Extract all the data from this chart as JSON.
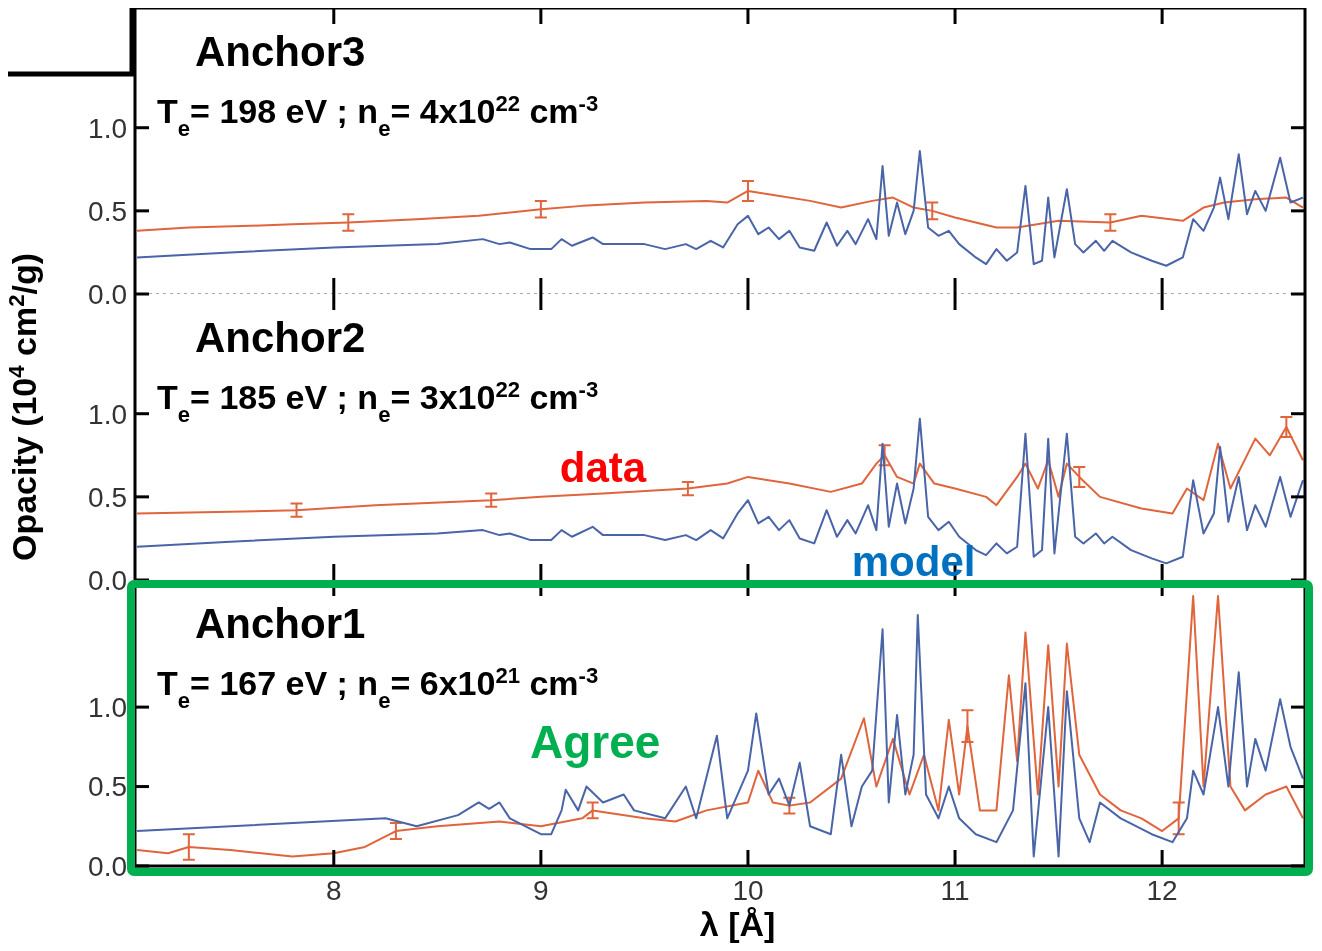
{
  "chart_data": [
    {
      "type": "line",
      "title": "Anchor3",
      "subtitle": "T$_{e}$= 198 eV ;  n$_{e}$= 4x10$^{22}$ cm$^{-3}$",
      "xlim": [
        7.04,
        12.69
      ],
      "xticks": [
        8,
        9,
        10,
        11,
        12
      ],
      "ylim": [
        0,
        1.72
      ],
      "yticks": [
        {
          "value": 0,
          "label": "0.0"
        },
        {
          "value": 0.5,
          "label": "0.5"
        },
        {
          "value": 1,
          "label": "1.0"
        }
      ],
      "tick_labels": "y",
      "ref_lines": [
        {
          "axis": "y",
          "value": 0,
          "line_style": "dotted",
          "color": "#aaaaaa"
        }
      ],
      "series": [
        {
          "color": "#e0643c",
          "x": [
            7.05,
            7.3,
            7.6,
            7.8,
            8.07,
            8.4,
            8.7,
            9.0,
            9.2,
            9.5,
            9.8,
            9.9,
            10.0,
            10.1,
            10.3,
            10.45,
            10.6,
            10.7,
            10.8,
            10.89,
            11.0,
            11.2,
            11.3,
            11.5,
            11.75,
            11.9,
            12.1,
            12.2,
            12.3,
            12.45,
            12.6,
            12.68
          ],
          "values": [
            0.38,
            0.4,
            0.41,
            0.42,
            0.43,
            0.45,
            0.47,
            0.51,
            0.53,
            0.55,
            0.56,
            0.55,
            0.62,
            0.6,
            0.56,
            0.52,
            0.56,
            0.58,
            0.52,
            0.5,
            0.46,
            0.4,
            0.4,
            0.44,
            0.43,
            0.47,
            0.44,
            0.52,
            0.55,
            0.57,
            0.58,
            0.52
          ],
          "errors": [
            null,
            null,
            null,
            null,
            0.05,
            null,
            null,
            0.05,
            null,
            null,
            null,
            null,
            0.06,
            null,
            null,
            null,
            null,
            null,
            null,
            0.05,
            null,
            null,
            null,
            null,
            0.05,
            null,
            null,
            null,
            null,
            null,
            null,
            null
          ]
        },
        {
          "color": "#4a64a8",
          "x": [
            7.05,
            7.5,
            8.0,
            8.5,
            8.72,
            8.8,
            8.85,
            8.95,
            9.05,
            9.1,
            9.15,
            9.25,
            9.3,
            9.5,
            9.6,
            9.7,
            9.75,
            9.82,
            9.88,
            9.95,
            10.0,
            10.05,
            10.1,
            10.15,
            10.2,
            10.25,
            10.32,
            10.38,
            10.43,
            10.48,
            10.52,
            10.58,
            10.62,
            10.65,
            10.68,
            10.72,
            10.76,
            10.8,
            10.83,
            10.87,
            10.92,
            10.97,
            11.02,
            11.1,
            11.15,
            11.2,
            11.25,
            11.3,
            11.34,
            11.38,
            11.42,
            11.45,
            11.48,
            11.54,
            11.58,
            11.62,
            11.68,
            11.72,
            11.76,
            11.85,
            11.95,
            12.02,
            12.1,
            12.15,
            12.2,
            12.25,
            12.28,
            12.32,
            12.37,
            12.41,
            12.45,
            12.5,
            12.57,
            12.62,
            12.68
          ],
          "values": [
            0.22,
            0.25,
            0.28,
            0.3,
            0.33,
            0.3,
            0.31,
            0.27,
            0.27,
            0.33,
            0.29,
            0.34,
            0.3,
            0.3,
            0.27,
            0.3,
            0.27,
            0.32,
            0.28,
            0.42,
            0.47,
            0.36,
            0.4,
            0.33,
            0.38,
            0.28,
            0.26,
            0.43,
            0.29,
            0.38,
            0.3,
            0.45,
            0.33,
            0.77,
            0.35,
            0.55,
            0.36,
            0.5,
            0.86,
            0.4,
            0.35,
            0.38,
            0.3,
            0.22,
            0.18,
            0.27,
            0.2,
            0.25,
            0.65,
            0.18,
            0.2,
            0.58,
            0.22,
            0.63,
            0.3,
            0.25,
            0.32,
            0.26,
            0.32,
            0.25,
            0.2,
            0.17,
            0.22,
            0.45,
            0.38,
            0.52,
            0.7,
            0.45,
            0.84,
            0.48,
            0.62,
            0.5,
            0.82,
            0.55,
            0.58
          ]
        }
      ]
    },
    {
      "type": "line",
      "title": "Anchor2",
      "subtitle": "T$_{e}$= 185 eV ;  n$_{e}$= 3x10$^{22}$ cm$^{-3}$",
      "ylabel": "Opacity (10$^{4}$ cm$^{2}$/g)",
      "xlim": [
        7.04,
        12.69
      ],
      "xticks": [
        8,
        9,
        10,
        11,
        12
      ],
      "ylim": [
        0,
        1.72
      ],
      "yticks": [
        {
          "value": 0,
          "label": "0.0"
        },
        {
          "value": 0.5,
          "label": "0.5"
        },
        {
          "value": 1,
          "label": "1.0"
        }
      ],
      "tick_labels": "y",
      "series": [
        {
          "name": "data",
          "color": "#e0643c",
          "x": [
            7.05,
            7.5,
            7.82,
            8.2,
            8.76,
            9.0,
            9.3,
            9.71,
            9.9,
            10.0,
            10.2,
            10.4,
            10.55,
            10.62,
            10.66,
            10.72,
            10.8,
            10.83,
            10.9,
            11.0,
            11.15,
            11.2,
            11.3,
            11.34,
            11.4,
            11.45,
            11.5,
            11.54,
            11.6,
            11.7,
            11.9,
            12.05,
            12.12,
            12.2,
            12.27,
            12.33,
            12.45,
            12.52,
            12.6,
            12.68
          ],
          "values": [
            0.4,
            0.41,
            0.42,
            0.45,
            0.48,
            0.5,
            0.52,
            0.55,
            0.58,
            0.62,
            0.58,
            0.53,
            0.58,
            0.7,
            0.75,
            0.62,
            0.58,
            0.7,
            0.58,
            0.55,
            0.5,
            0.45,
            0.62,
            0.7,
            0.55,
            0.72,
            0.5,
            0.7,
            0.62,
            0.5,
            0.43,
            0.4,
            0.55,
            0.48,
            0.82,
            0.55,
            0.85,
            0.75,
            0.92,
            0.72
          ],
          "errors": [
            null,
            null,
            0.04,
            null,
            0.04,
            null,
            null,
            0.04,
            null,
            null,
            null,
            null,
            null,
            null,
            0.06,
            null,
            null,
            null,
            null,
            null,
            null,
            null,
            null,
            null,
            null,
            null,
            null,
            null,
            0.06,
            null,
            null,
            null,
            null,
            null,
            null,
            null,
            null,
            null,
            0.06,
            null
          ]
        },
        {
          "name": "model",
          "color": "#4a64a8",
          "x": [
            7.05,
            7.5,
            8.0,
            8.5,
            8.72,
            8.8,
            8.85,
            8.95,
            9.05,
            9.1,
            9.15,
            9.25,
            9.3,
            9.5,
            9.6,
            9.7,
            9.75,
            9.82,
            9.88,
            9.95,
            10.0,
            10.05,
            10.1,
            10.15,
            10.2,
            10.25,
            10.32,
            10.38,
            10.43,
            10.48,
            10.52,
            10.58,
            10.62,
            10.65,
            10.68,
            10.72,
            10.76,
            10.8,
            10.83,
            10.87,
            10.92,
            10.97,
            11.02,
            11.1,
            11.15,
            11.2,
            11.25,
            11.3,
            11.34,
            11.38,
            11.42,
            11.45,
            11.48,
            11.54,
            11.58,
            11.62,
            11.68,
            11.72,
            11.76,
            11.85,
            11.95,
            12.02,
            12.1,
            12.15,
            12.2,
            12.25,
            12.28,
            12.32,
            12.37,
            12.41,
            12.45,
            12.5,
            12.57,
            12.62,
            12.68
          ],
          "values": [
            0.2,
            0.23,
            0.26,
            0.28,
            0.3,
            0.27,
            0.28,
            0.24,
            0.24,
            0.3,
            0.26,
            0.32,
            0.27,
            0.27,
            0.24,
            0.27,
            0.24,
            0.3,
            0.25,
            0.4,
            0.48,
            0.34,
            0.38,
            0.3,
            0.36,
            0.25,
            0.22,
            0.42,
            0.26,
            0.36,
            0.28,
            0.45,
            0.3,
            0.82,
            0.32,
            0.58,
            0.34,
            0.55,
            0.97,
            0.38,
            0.3,
            0.35,
            0.26,
            0.18,
            0.15,
            0.22,
            0.16,
            0.2,
            0.88,
            0.14,
            0.18,
            0.85,
            0.16,
            0.88,
            0.26,
            0.22,
            0.28,
            0.22,
            0.26,
            0.18,
            0.13,
            0.1,
            0.14,
            0.6,
            0.28,
            0.4,
            0.8,
            0.35,
            0.62,
            0.3,
            0.45,
            0.32,
            0.62,
            0.38,
            0.6
          ]
        }
      ]
    },
    {
      "type": "line",
      "title": "Anchor1",
      "subtitle": "T$_{e}$= 167 eV ;  n$_{e}$= 6x10$^{21}$ cm$^{-3}$",
      "xlabel": "λ [Å]",
      "annotations": [
        "Agree"
      ],
      "xlim": [
        7.04,
        12.69
      ],
      "xticks": [
        8,
        9,
        10,
        11,
        12
      ],
      "ylim": [
        0,
        1.8
      ],
      "yticks": [
        {
          "value": 0,
          "label": "0.0"
        },
        {
          "value": 0.5,
          "label": "0.5"
        },
        {
          "value": 1,
          "label": "1.0"
        }
      ],
      "series": [
        {
          "color": "#e0643c",
          "x": [
            7.05,
            7.2,
            7.3,
            7.5,
            7.8,
            8.0,
            8.15,
            8.3,
            8.5,
            8.8,
            9.0,
            9.2,
            9.25,
            9.5,
            9.65,
            9.8,
            10.0,
            10.05,
            10.12,
            10.2,
            10.3,
            10.45,
            10.56,
            10.62,
            10.7,
            10.78,
            10.85,
            10.92,
            10.97,
            11.02,
            11.06,
            11.12,
            11.2,
            11.26,
            11.3,
            11.34,
            11.4,
            11.45,
            11.5,
            11.54,
            11.6,
            11.7,
            11.8,
            11.9,
            12.0,
            12.08,
            12.15,
            12.2,
            12.27,
            12.33,
            12.4,
            12.5,
            12.6,
            12.68
          ],
          "values": [
            0.1,
            0.08,
            0.12,
            0.1,
            0.06,
            0.08,
            0.12,
            0.22,
            0.25,
            0.28,
            0.25,
            0.3,
            0.35,
            0.3,
            0.28,
            0.35,
            0.4,
            0.6,
            0.4,
            0.38,
            0.4,
            0.55,
            0.93,
            0.5,
            0.8,
            0.45,
            0.7,
            0.35,
            0.92,
            0.45,
            0.88,
            0.35,
            0.35,
            1.2,
            0.66,
            1.47,
            0.45,
            1.39,
            0.5,
            1.4,
            0.7,
            0.45,
            0.35,
            0.3,
            0.22,
            0.3,
            1.7,
            0.5,
            1.7,
            0.5,
            0.35,
            0.45,
            0.5,
            0.3
          ],
          "errors": [
            null,
            null,
            0.08,
            null,
            null,
            null,
            null,
            0.05,
            null,
            null,
            null,
            null,
            0.05,
            null,
            null,
            null,
            null,
            null,
            null,
            0.05,
            null,
            null,
            null,
            null,
            null,
            null,
            null,
            null,
            null,
            null,
            0.1,
            null,
            null,
            null,
            null,
            null,
            null,
            null,
            null,
            null,
            null,
            null,
            null,
            null,
            null,
            0.1,
            null,
            null,
            null,
            null,
            null,
            null,
            null,
            null
          ]
        },
        {
          "color": "#4a64a8",
          "x": [
            7.05,
            8.25,
            8.4,
            8.6,
            8.7,
            8.75,
            8.8,
            8.85,
            9.0,
            9.05,
            9.1,
            9.12,
            9.18,
            9.22,
            9.3,
            9.4,
            9.45,
            9.6,
            9.7,
            9.75,
            9.85,
            9.9,
            10.0,
            10.04,
            10.1,
            10.15,
            10.2,
            10.25,
            10.3,
            10.4,
            10.45,
            10.5,
            10.55,
            10.6,
            10.65,
            10.68,
            10.72,
            10.76,
            10.8,
            10.82,
            10.86,
            10.92,
            10.97,
            11.02,
            11.1,
            11.2,
            11.28,
            11.34,
            11.38,
            11.45,
            11.5,
            11.54,
            11.6,
            11.65,
            11.7,
            11.8,
            11.95,
            12.05,
            12.12,
            12.15,
            12.2,
            12.27,
            12.32,
            12.37,
            12.41,
            12.45,
            12.5,
            12.57,
            12.62,
            12.68
          ],
          "values": [
            0.22,
            0.3,
            0.25,
            0.32,
            0.4,
            0.36,
            0.4,
            0.3,
            0.2,
            0.2,
            0.35,
            0.48,
            0.35,
            0.5,
            0.4,
            0.45,
            0.35,
            0.3,
            0.5,
            0.3,
            0.82,
            0.3,
            0.6,
            0.96,
            0.45,
            0.55,
            0.38,
            0.65,
            0.25,
            0.2,
            0.7,
            0.25,
            0.5,
            0.6,
            1.49,
            0.4,
            0.95,
            0.45,
            0.7,
            1.58,
            0.45,
            0.3,
            0.5,
            0.3,
            0.2,
            0.15,
            0.35,
            1.15,
            0.06,
            1.0,
            0.06,
            1.1,
            0.3,
            0.15,
            0.4,
            0.3,
            0.2,
            0.15,
            0.3,
            0.6,
            0.45,
            1.0,
            0.5,
            1.22,
            0.5,
            0.8,
            0.6,
            1.05,
            0.75,
            0.55
          ]
        }
      ]
    }
  ]
}
